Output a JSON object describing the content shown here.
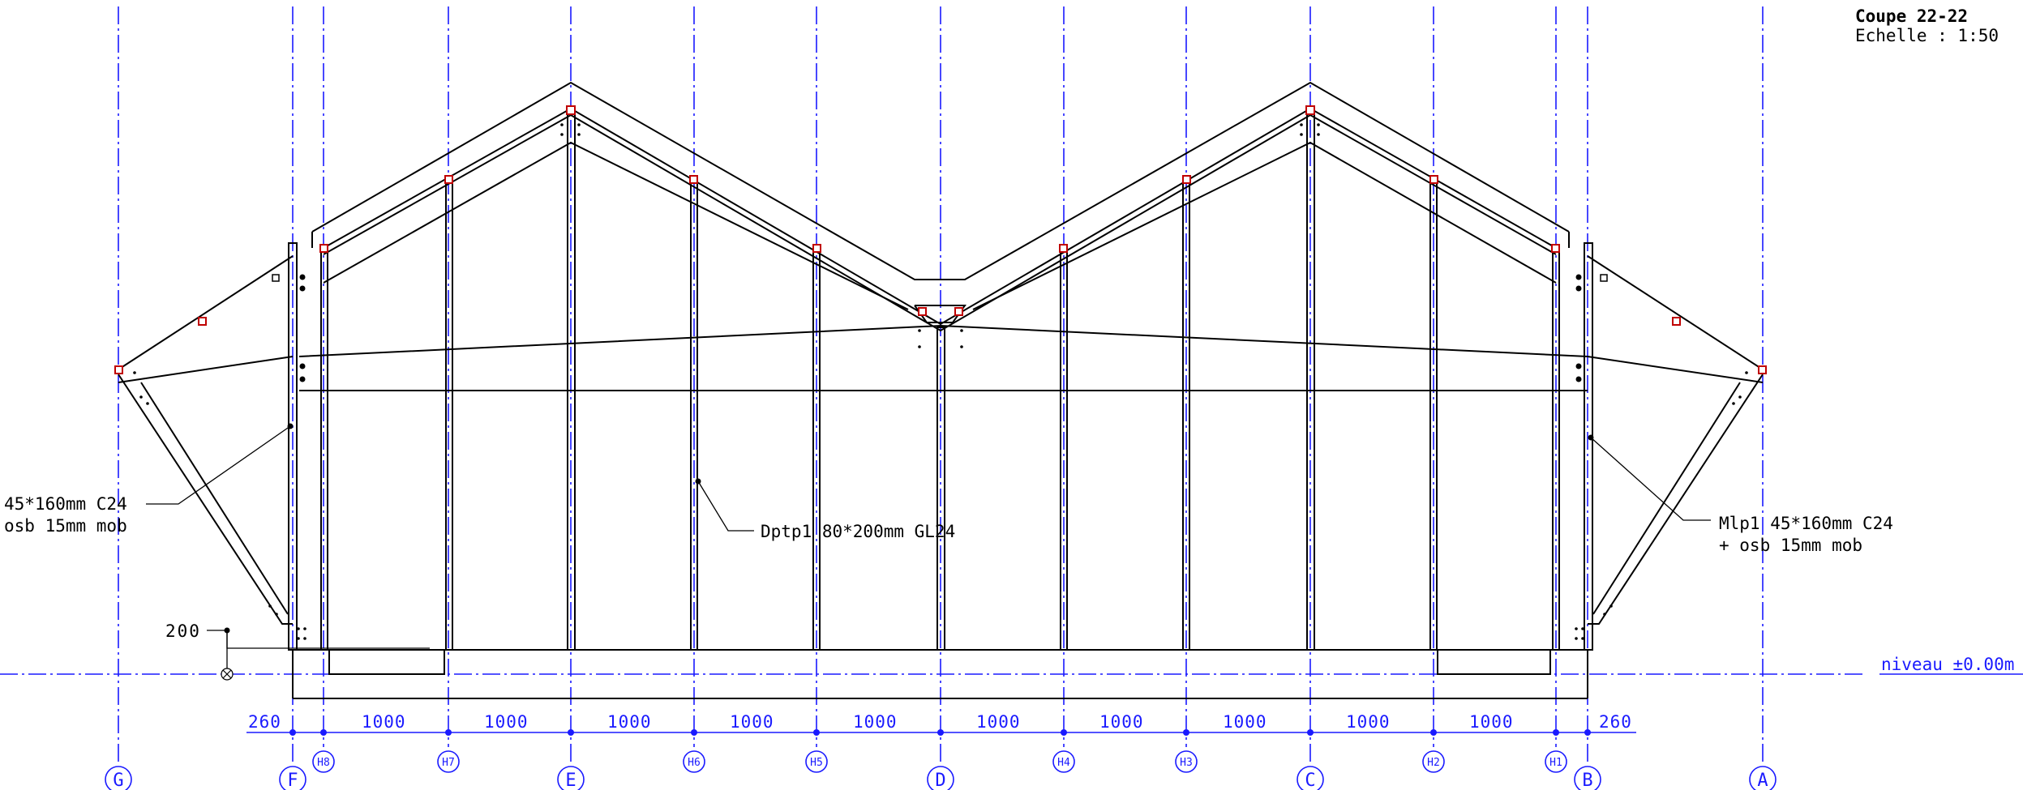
{
  "title_block": {
    "section": "Coupe 22-22",
    "scale": "Echelle :  1:50"
  },
  "colors": {
    "axis": "#1a1aff",
    "ink": "#000000",
    "connector": "#c00000"
  },
  "grid_axes": {
    "main": [
      "G",
      "F",
      "E",
      "D",
      "C",
      "B",
      "A"
    ],
    "secondary": [
      "H8",
      "H7",
      "H6",
      "H5",
      "H4",
      "H3",
      "H2",
      "H1"
    ]
  },
  "dimensions": {
    "spans": [
      "260",
      "1000",
      "1000",
      "1000",
      "1000",
      "1000",
      "1000",
      "1000",
      "1000",
      "1000",
      "1000",
      "260"
    ],
    "height": "200"
  },
  "level": "niveau ±0.00m",
  "annotations": {
    "left_wall_line1": "45*160mm C24",
    "left_wall_line2": "osb 15mm mob",
    "post": "Dptp1 80*200mm GL24",
    "right_wall_line1": "Mlp1 45*160mm C24",
    "right_wall_line2": "+ osb 15mm mob"
  }
}
